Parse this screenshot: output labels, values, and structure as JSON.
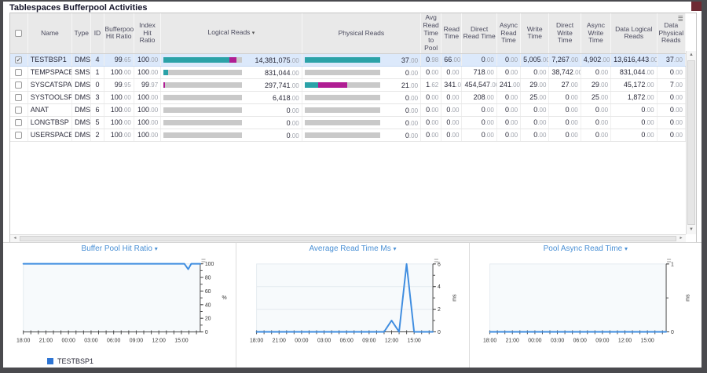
{
  "app": {
    "title": "Tablespaces Bufferpool Activities"
  },
  "icons": {
    "sort_caret": "▾",
    "dropdown_caret": "▾",
    "options_grid": "≣",
    "scroll_up": "▲",
    "scroll_down": "▼",
    "scroll_left": "◂",
    "scroll_right": "▸",
    "check": "✓"
  },
  "colors": {
    "teal": "#2ba2a8",
    "magenta": "#b01e93",
    "gray": "#c9c9c9",
    "selected_row": "#dce9fb",
    "chart_line": "#3f8de0",
    "chart_title": "#4a90d5",
    "legend_swatch": "#2e75d4"
  },
  "table": {
    "columns": [
      "",
      "Name",
      "Type",
      "ID",
      "Bufferpool Hit Ratio",
      "Index Hit Ratio",
      "Logical Reads",
      "Physical Reads",
      "Avg Read Time to Pool",
      "Read Time",
      "Direct Read Time",
      "Async Read Time",
      "Write Time",
      "Direct Write Time",
      "Async Write Time",
      "Data Logical Reads",
      "Data Physical Reads"
    ],
    "sorted_column": "Logical Reads",
    "rows": [
      {
        "checked": true,
        "selected": true,
        "name": "TESTBSP1",
        "type": "DMS",
        "id": "4",
        "bp_hit": "99.65",
        "idx_hit": "100.00",
        "logical_reads": "14,381,075.00",
        "logical_bar": [
          [
            "teal",
            84
          ],
          [
            "magenta",
            9
          ],
          [
            "gray",
            7
          ]
        ],
        "physical_reads": "37.00",
        "physical_bar": [
          [
            "teal",
            100
          ]
        ],
        "avg_read_to_pool": "0.98",
        "read_time": "66.00",
        "direct_read": "0.00",
        "async_read": "0.00",
        "write_time": "5,005.00",
        "direct_write": "7,267.00",
        "async_write": "4,902.00",
        "data_logical": "13,616,443.00",
        "data_physical": "37.00"
      },
      {
        "checked": false,
        "selected": false,
        "name": "TEMPSPACE1",
        "type": "SMS",
        "id": "1",
        "bp_hit": "100.00",
        "idx_hit": "100.00",
        "logical_reads": "831,044.00",
        "logical_bar": [
          [
            "teal",
            6
          ],
          [
            "gray",
            94
          ]
        ],
        "physical_reads": "0.00",
        "physical_bar": [
          [
            "gray",
            100
          ]
        ],
        "avg_read_to_pool": "0.00",
        "read_time": "0.00",
        "direct_read": "718.00",
        "async_read": "0.00",
        "write_time": "0.00",
        "direct_write": "38,742.00",
        "async_write": "0.00",
        "data_logical": "831,044.00",
        "data_physical": "0.00"
      },
      {
        "checked": false,
        "selected": false,
        "name": "SYSCATSPACE",
        "type": "DMS",
        "id": "0",
        "bp_hit": "99.95",
        "idx_hit": "99.97",
        "logical_reads": "297,741.00",
        "logical_bar": [
          [
            "magenta",
            2
          ],
          [
            "gray",
            98
          ]
        ],
        "physical_reads": "21.00",
        "physical_bar": [
          [
            "teal",
            18
          ],
          [
            "magenta",
            39
          ],
          [
            "gray",
            43
          ]
        ],
        "avg_read_to_pool": "1.62",
        "read_time": "341.00",
        "direct_read": "454,547.00",
        "async_read": "241.00",
        "write_time": "29.00",
        "direct_write": "27.00",
        "async_write": "29.00",
        "data_logical": "45,172.00",
        "data_physical": "7.00"
      },
      {
        "checked": false,
        "selected": false,
        "name": "SYSTOOLSPACE",
        "type": "DMS",
        "id": "3",
        "bp_hit": "100.00",
        "idx_hit": "100.00",
        "logical_reads": "6,418.00",
        "logical_bar": [
          [
            "gray",
            100
          ]
        ],
        "physical_reads": "0.00",
        "physical_bar": [
          [
            "gray",
            100
          ]
        ],
        "avg_read_to_pool": "0.00",
        "read_time": "0.00",
        "direct_read": "208.00",
        "async_read": "0.00",
        "write_time": "25.00",
        "direct_write": "0.00",
        "async_write": "25.00",
        "data_logical": "1,872.00",
        "data_physical": "0.00"
      },
      {
        "checked": false,
        "selected": false,
        "name": "ANAT",
        "type": "DMS",
        "id": "6",
        "bp_hit": "100.00",
        "idx_hit": "100.00",
        "logical_reads": "0.00",
        "logical_bar": [
          [
            "gray",
            100
          ]
        ],
        "physical_reads": "0.00",
        "physical_bar": [
          [
            "gray",
            100
          ]
        ],
        "avg_read_to_pool": "0.00",
        "read_time": "0.00",
        "direct_read": "0.00",
        "async_read": "0.00",
        "write_time": "0.00",
        "direct_write": "0.00",
        "async_write": "0.00",
        "data_logical": "0.00",
        "data_physical": "0.00"
      },
      {
        "checked": false,
        "selected": false,
        "name": "LONGTBSP",
        "type": "DMS",
        "id": "5",
        "bp_hit": "100.00",
        "idx_hit": "100.00",
        "logical_reads": "0.00",
        "logical_bar": [
          [
            "gray",
            100
          ]
        ],
        "physical_reads": "0.00",
        "physical_bar": [
          [
            "gray",
            100
          ]
        ],
        "avg_read_to_pool": "0.00",
        "read_time": "0.00",
        "direct_read": "0.00",
        "async_read": "0.00",
        "write_time": "0.00",
        "direct_write": "0.00",
        "async_write": "0.00",
        "data_logical": "0.00",
        "data_physical": "0.00"
      },
      {
        "checked": false,
        "selected": false,
        "name": "USERSPACE1",
        "type": "DMS",
        "id": "2",
        "bp_hit": "100.00",
        "idx_hit": "100.00",
        "logical_reads": "0.00",
        "logical_bar": [
          [
            "gray",
            100
          ]
        ],
        "physical_reads": "0.00",
        "physical_bar": [
          [
            "gray",
            100
          ]
        ],
        "avg_read_to_pool": "0.00",
        "read_time": "0.00",
        "direct_read": "0.00",
        "async_read": "0.00",
        "write_time": "0.00",
        "direct_write": "0.00",
        "async_write": "0.00",
        "data_logical": "0.00",
        "data_physical": "0.00"
      }
    ]
  },
  "chart_data": [
    {
      "type": "line",
      "title": "Buffer Pool Hit Ratio",
      "unit": "%",
      "ylim": [
        0,
        100
      ],
      "y_tick_labels": [
        0,
        20,
        40,
        60,
        80,
        100
      ],
      "y_minor_step": 10,
      "x_range_hours": [
        0,
        23.5
      ],
      "x_label_hours": [
        0,
        3,
        6,
        9,
        12,
        15,
        18,
        21
      ],
      "x_tick_labels": [
        "18:00",
        "21:00",
        "00:00",
        "03:00",
        "06:00",
        "09:00",
        "12:00",
        "15:00"
      ],
      "gridline_values": [],
      "series": [
        {
          "name": "TESTBSP1",
          "color": "#3f8de0",
          "points": [
            [
              0,
              100
            ],
            [
              21.4,
              100
            ],
            [
              21.9,
              92
            ],
            [
              22.3,
              100
            ],
            [
              23.5,
              100
            ]
          ]
        }
      ],
      "legend": [
        {
          "label": "TESTBSP1",
          "color": "#2e75d4"
        }
      ]
    },
    {
      "type": "line",
      "title": "Average Read Time Ms",
      "unit": "ms",
      "ylim": [
        0,
        6
      ],
      "y_tick_labels": [
        0,
        2,
        4,
        6
      ],
      "y_minor_step": 1,
      "x_range_hours": [
        0,
        23.5
      ],
      "x_label_hours": [
        0,
        3,
        6,
        9,
        12,
        15,
        18,
        21
      ],
      "x_tick_labels": [
        "18:00",
        "21:00",
        "00:00",
        "03:00",
        "06:00",
        "09:00",
        "12:00",
        "15:00"
      ],
      "gridline_values": [
        2,
        4
      ],
      "series": [
        {
          "name": "TESTBSP1",
          "color": "#3f8de0",
          "points": [
            [
              0,
              0
            ],
            [
              17,
              0
            ],
            [
              18,
              1
            ],
            [
              19,
              0
            ],
            [
              20,
              6
            ],
            [
              21,
              0
            ],
            [
              23.5,
              0
            ]
          ]
        }
      ],
      "legend": []
    },
    {
      "type": "line",
      "title": "Pool Async Read Time",
      "unit": "ms",
      "ylim": [
        0,
        1
      ],
      "y_tick_labels": [
        0,
        1
      ],
      "y_minor_step": 0.5,
      "x_range_hours": [
        0,
        23.5
      ],
      "x_label_hours": [
        0,
        3,
        6,
        9,
        12,
        15,
        18,
        21
      ],
      "x_tick_labels": [
        "18:00",
        "21:00",
        "00:00",
        "03:00",
        "06:00",
        "09:00",
        "12:00",
        "15:00"
      ],
      "gridline_values": [],
      "series": [
        {
          "name": "TESTBSP1",
          "color": "#3f8de0",
          "points": [
            [
              0,
              0
            ],
            [
              23.5,
              0
            ]
          ]
        }
      ],
      "legend": []
    }
  ]
}
